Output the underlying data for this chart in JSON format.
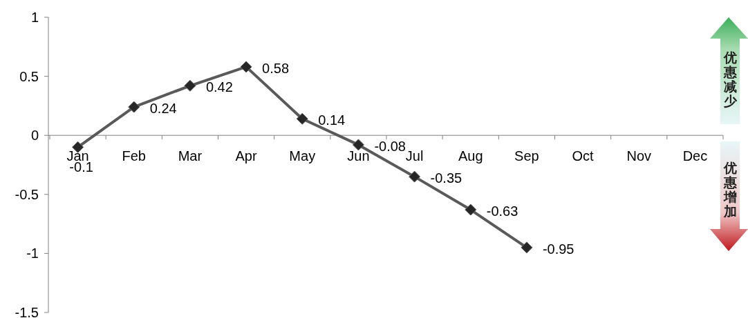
{
  "chart_data": {
    "type": "line",
    "categories": [
      "Jan",
      "Feb",
      "Mar",
      "Apr",
      "May",
      "Jun",
      "Jul",
      "Aug",
      "Sep",
      "Oct",
      "Nov",
      "Dec"
    ],
    "series": [
      {
        "color": "#595959",
        "values": [
          -0.1,
          0.24,
          0.42,
          0.58,
          0.14,
          -0.08,
          -0.35,
          -0.63,
          -0.95,
          null,
          null,
          null
        ]
      }
    ],
    "ylim": [
      -1.5,
      1
    ],
    "yticks": [
      -1.5,
      -1,
      -0.5,
      0,
      0.5,
      1
    ],
    "annotations": [
      "优惠减少",
      "优惠增加"
    ],
    "data_labels": true,
    "marker": "diamond",
    "line_style": "solid",
    "grid": false
  }
}
